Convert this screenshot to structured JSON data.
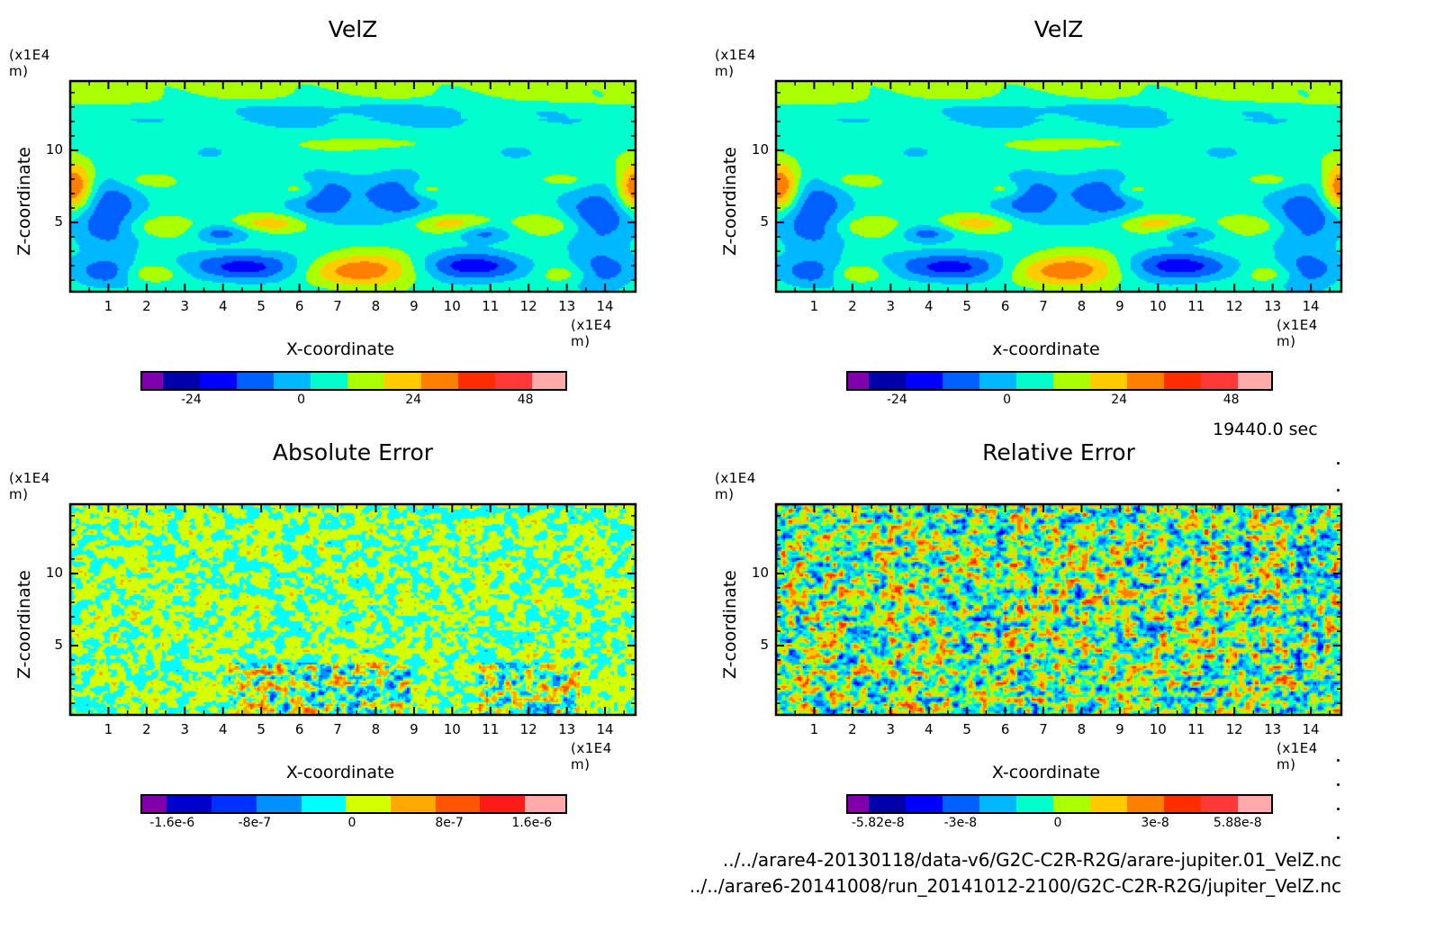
{
  "chart_data": [
    {
      "type": "heatmap",
      "title": "VelZ",
      "xlabel": "X-coordinate",
      "ylabel": "Z-coordinate",
      "x_unit": "(x1E4 m)",
      "y_unit": "(x1E4 m)",
      "xlim": [
        0,
        14.8
      ],
      "ylim": [
        0.2,
        14.8
      ],
      "x_ticks": [
        "1",
        "2",
        "3",
        "4",
        "5",
        "6",
        "7",
        "8",
        "9",
        "10",
        "11",
        "12",
        "13",
        "14"
      ],
      "y_ticks": [
        "5",
        "10"
      ],
      "colorbar": {
        "ticks": [
          "-24",
          "0",
          "24",
          "48"
        ],
        "levels": [
          -36,
          -30,
          -24,
          -12,
          0,
          12,
          24,
          36,
          48,
          54,
          60,
          66,
          72
        ],
        "colors": [
          "#7f00aa",
          "#0000aa",
          "#0000ff",
          "#0060ff",
          "#00b8ff",
          "#00ffcc",
          "#aaff00",
          "#ffcc00",
          "#ff8000",
          "#ff2c00",
          "#ff3838",
          "#ffaaaa"
        ]
      },
      "pattern": "smooth",
      "seed": 7
    },
    {
      "type": "heatmap",
      "title": "VelZ",
      "xlabel": "x-coordinate",
      "ylabel": "Z-coordinate",
      "x_unit": "(x1E4 m)",
      "y_unit": "(x1E4 m)",
      "xlim": [
        0,
        14.8
      ],
      "ylim": [
        0.2,
        14.8
      ],
      "x_ticks": [
        "1",
        "2",
        "3",
        "4",
        "5",
        "6",
        "7",
        "8",
        "9",
        "10",
        "11",
        "12",
        "13",
        "14"
      ],
      "y_ticks": [
        "5",
        "10"
      ],
      "colorbar": {
        "ticks": [
          "-24",
          "0",
          "24",
          "48"
        ],
        "colors": [
          "#7f00aa",
          "#0000aa",
          "#0000ff",
          "#0060ff",
          "#00b8ff",
          "#00ffcc",
          "#aaff00",
          "#ffcc00",
          "#ff8000",
          "#ff2c00",
          "#ff3838",
          "#ffaaaa"
        ]
      },
      "pattern": "smooth",
      "seed": 7
    },
    {
      "type": "heatmap",
      "title": "Absolute Error",
      "xlabel": "X-coordinate",
      "ylabel": "Z-coordinate",
      "x_unit": "(x1E4 m)",
      "y_unit": "(x1E4 m)",
      "xlim": [
        0,
        14.8
      ],
      "ylim": [
        0.2,
        14.8
      ],
      "x_ticks": [
        "1",
        "2",
        "3",
        "4",
        "5",
        "6",
        "7",
        "8",
        "9",
        "10",
        "11",
        "12",
        "13",
        "14"
      ],
      "y_ticks": [
        "5",
        "10"
      ],
      "colorbar": {
        "ticks": [
          "-1.6e-6",
          "-8e-7",
          "0",
          "8e-7",
          "1.6e-6"
        ],
        "colors": [
          "#7f00aa",
          "#0000cc",
          "#0030ff",
          "#0090ff",
          "#00ffff",
          "#d4ff00",
          "#ffaa00",
          "#ff5500",
          "#ff1a1a",
          "#ffaaaa"
        ]
      },
      "pattern": "noise-low",
      "seed": 3
    },
    {
      "type": "heatmap",
      "title": "Relative Error",
      "xlabel": "X-coordinate",
      "ylabel": "Z-coordinate",
      "x_unit": "(x1E4 m)",
      "y_unit": "(x1E4 m)",
      "xlim": [
        0,
        14.8
      ],
      "ylim": [
        0.2,
        14.8
      ],
      "x_ticks": [
        "1",
        "2",
        "3",
        "4",
        "5",
        "6",
        "7",
        "8",
        "9",
        "10",
        "11",
        "12",
        "13",
        "14"
      ],
      "y_ticks": [
        "5",
        "10"
      ],
      "colorbar": {
        "ticks": [
          "-5.82e-8",
          "-3e-8",
          "0",
          "3e-8",
          "5.88e-8"
        ],
        "colors": [
          "#7f00aa",
          "#0000aa",
          "#0000ff",
          "#0060ff",
          "#00b8ff",
          "#00ffcc",
          "#aaff00",
          "#ffcc00",
          "#ff8000",
          "#ff2c00",
          "#ff3838",
          "#ffaaaa"
        ]
      },
      "pattern": "noise-high",
      "seed": 11
    }
  ],
  "time_label": "19440.0 sec",
  "file_paths": [
    "../../arare4-20130118/data-v6/G2C-C2R-R2G/arare-jupiter.01_VelZ.nc",
    "../../arare6-20141008/run_20141012-2100/G2C-C2R-R2G/jupiter_VelZ.nc"
  ]
}
